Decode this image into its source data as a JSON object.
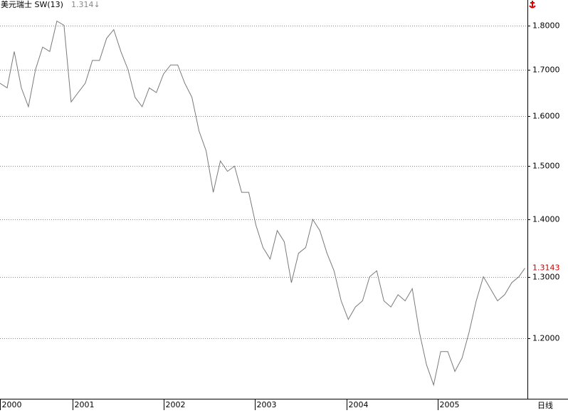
{
  "chart_data": {
    "type": "line",
    "title": "美元瑞士 SW(13)",
    "subtitle": "1.314↓",
    "period_label": "日线",
    "log_scale": true,
    "grid": true,
    "xlim": [
      2000.2,
      2005.98
    ],
    "ylim": [
      1.11,
      1.86
    ],
    "xticks": [
      {
        "value": 2000.2,
        "label": "2000"
      },
      2001,
      2002,
      2003,
      2004,
      2005
    ],
    "yticks": [
      {
        "value": 1.2,
        "label": "1.2000"
      },
      {
        "value": 1.3,
        "label": "1.3000"
      },
      {
        "value": 1.4,
        "label": "1.4000"
      },
      {
        "value": 1.5,
        "label": "1.5000"
      },
      {
        "value": 1.6,
        "label": "1.6000"
      },
      {
        "value": 1.7,
        "label": "1.7000"
      },
      {
        "value": 1.8,
        "label": "1.8000"
      }
    ],
    "series": [
      {
        "name": "SW(13)",
        "color": "#7a7a7a",
        "x": [
          2000.2,
          2000.278,
          2000.356,
          2000.434,
          2000.512,
          2000.59,
          2000.668,
          2000.746,
          2000.824,
          2000.902,
          2000.98,
          2001.058,
          2001.136,
          2001.214,
          2001.292,
          2001.37,
          2001.448,
          2001.526,
          2001.604,
          2001.682,
          2001.76,
          2001.838,
          2001.916,
          2001.994,
          2002.072,
          2002.15,
          2002.228,
          2002.306,
          2002.384,
          2002.462,
          2002.54,
          2002.618,
          2002.696,
          2002.774,
          2002.852,
          2002.93,
          2003.008,
          2003.086,
          2003.164,
          2003.242,
          2003.32,
          2003.398,
          2003.476,
          2003.554,
          2003.632,
          2003.71,
          2003.788,
          2003.866,
          2003.944,
          2004.022,
          2004.1,
          2004.178,
          2004.256,
          2004.334,
          2004.412,
          2004.49,
          2004.568,
          2004.646,
          2004.724,
          2004.802,
          2004.88,
          2004.958,
          2005.036,
          2005.114,
          2005.192,
          2005.27,
          2005.348,
          2005.426,
          2005.504,
          2005.582,
          2005.66,
          2005.738,
          2005.816,
          2005.894,
          2005.96
        ],
        "values": [
          1.67,
          1.66,
          1.74,
          1.66,
          1.62,
          1.7,
          1.75,
          1.74,
          1.81,
          1.8,
          1.63,
          1.65,
          1.67,
          1.72,
          1.72,
          1.77,
          1.79,
          1.74,
          1.7,
          1.64,
          1.62,
          1.66,
          1.65,
          1.69,
          1.71,
          1.71,
          1.67,
          1.64,
          1.57,
          1.53,
          1.45,
          1.51,
          1.49,
          1.5,
          1.45,
          1.45,
          1.39,
          1.35,
          1.33,
          1.38,
          1.36,
          1.29,
          1.34,
          1.35,
          1.4,
          1.38,
          1.34,
          1.31,
          1.26,
          1.23,
          1.25,
          1.26,
          1.3,
          1.31,
          1.26,
          1.25,
          1.27,
          1.26,
          1.28,
          1.21,
          1.16,
          1.13,
          1.18,
          1.18,
          1.15,
          1.17,
          1.21,
          1.26,
          1.3,
          1.28,
          1.26,
          1.27,
          1.29,
          1.3,
          1.3143
        ]
      }
    ],
    "last_value": 1.3143,
    "last_value_color": "#cc0000"
  }
}
